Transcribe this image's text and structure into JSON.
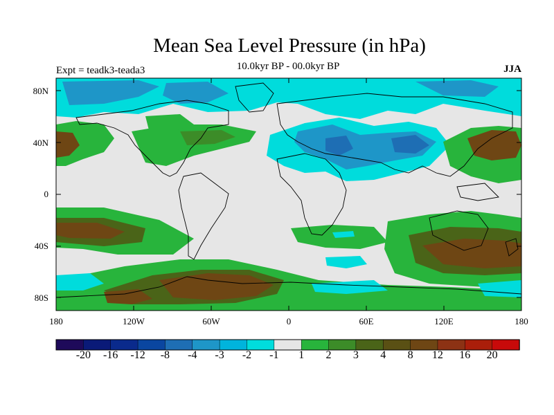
{
  "title": "Mean Sea Level Pressure (in hPa)",
  "expt_label": "Expt = teadk3-teada3",
  "period_label": "10.0kyr BP - 00.0kyr BP",
  "season_label": "JJA",
  "y_axis_ticks": [
    "80N",
    "40N",
    "0",
    "40S",
    "80S"
  ],
  "x_axis_ticks": [
    "180",
    "120W",
    "60W",
    "0",
    "60E",
    "120E",
    "180"
  ],
  "colorbar": {
    "colors": [
      "#1e0a5a",
      "#0a1a78",
      "#0a2a8c",
      "#0a46a0",
      "#1e6eb4",
      "#1e96c8",
      "#00b4dc",
      "#00dcdc",
      "#e6e6e6",
      "#28b43c",
      "#3c8c28",
      "#4a6418",
      "#5a5014",
      "#6e4614",
      "#8c3214",
      "#aa1e0a",
      "#c80a0a"
    ],
    "labels": [
      "-20",
      "-16",
      "-12",
      "-8",
      "-4",
      "-3",
      "-2",
      "-1",
      "1",
      "2",
      "3",
      "4",
      "8",
      "12",
      "16",
      "20"
    ]
  },
  "colors": {
    "background_field": "#e6e6e6",
    "land_outline": "#000000"
  }
}
